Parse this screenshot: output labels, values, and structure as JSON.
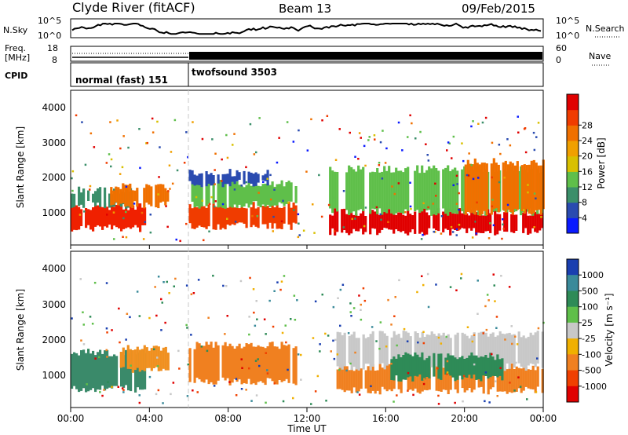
{
  "header": {
    "station": "Clyde River (fitACF)",
    "beam": "Beam 13",
    "date": "09/Feb/2015"
  },
  "noise_panel": {
    "left_label": "N.Sky",
    "right_label": "N.Search",
    "left_ticks": [
      "10^5",
      "10^0"
    ],
    "right_ticks": [
      "10^5",
      "10^0"
    ]
  },
  "freq_panel": {
    "left_label_1": "Freq.",
    "left_label_2": "[MHz]",
    "left_ticks": [
      "18",
      "8"
    ],
    "right_label": "Nave",
    "right_ticks": [
      "60",
      "0"
    ]
  },
  "cpid_panel": {
    "label": "CPID",
    "mode_1": "normal (fast) 151",
    "mode_2": "twofsound 3503"
  },
  "time_axis": {
    "label": "Time UT",
    "ticks": [
      "00:00",
      "04:00",
      "08:00",
      "12:00",
      "16:00",
      "20:00",
      "00:00"
    ]
  },
  "chart_data": [
    {
      "type": "heatmap",
      "name": "power",
      "ylabel": "Slant Range [km]",
      "y_ticks": [
        "1000",
        "2000",
        "3000",
        "4000"
      ],
      "ylim": [
        180,
        4500
      ],
      "xlim": [
        0,
        24
      ],
      "colorbar_label": "Power [dB]",
      "colorbar_ticks": [
        "4",
        "8",
        "12",
        "16",
        "20",
        "24",
        "28"
      ],
      "colorbar_colors": [
        "#0a1aff",
        "#2a4bb0",
        "#3b8f6a",
        "#5fbf4a",
        "#d8c000",
        "#f0a000",
        "#f07000",
        "#f03c00",
        "#e00000"
      ],
      "bands": [
        {
          "t0": 0.0,
          "t1": 3.8,
          "r0": 650,
          "r1": 1250,
          "color": "#f02000"
        },
        {
          "t0": 0.0,
          "t1": 3.0,
          "r0": 1300,
          "r1": 1700,
          "color": "#3b8f6a"
        },
        {
          "t0": 2.0,
          "t1": 5.0,
          "r0": 1300,
          "r1": 1800,
          "color": "#f07000"
        },
        {
          "t0": 6.0,
          "t1": 11.5,
          "r0": 700,
          "r1": 1300,
          "color": "#f03c00"
        },
        {
          "t0": 6.0,
          "t1": 11.5,
          "r0": 1300,
          "r1": 1900,
          "color": "#5fbf4a"
        },
        {
          "t0": 6.0,
          "t1": 10.0,
          "r0": 1900,
          "r1": 2200,
          "color": "#2a4bb0"
        },
        {
          "t0": 13.0,
          "t1": 24.0,
          "r0": 550,
          "r1": 1100,
          "color": "#e00000"
        },
        {
          "t0": 13.0,
          "t1": 24.0,
          "r0": 1100,
          "r1": 2300,
          "color": "#5fbf4a"
        },
        {
          "t0": 20.0,
          "t1": 24.0,
          "r0": 1100,
          "r1": 2500,
          "color": "#f07000"
        }
      ]
    },
    {
      "type": "heatmap",
      "name": "velocity",
      "ylabel": "Slant Range [km]",
      "y_ticks": [
        "1000",
        "2000",
        "3000",
        "4000"
      ],
      "ylim": [
        180,
        4500
      ],
      "xlim": [
        0,
        24
      ],
      "colorbar_label": "Velocity [m s⁻¹]",
      "colorbar_ticks": [
        "1000",
        "500",
        "100",
        "25",
        "-25",
        "-100",
        "-500",
        "-1000"
      ],
      "colorbar_colors": [
        "#1a3fb0",
        "#3a8a9a",
        "#2e8b57",
        "#5fbf4a",
        "#c8c8c8",
        "#f0b000",
        "#f08020",
        "#f04000",
        "#e00000"
      ],
      "bands": [
        {
          "t0": 0.0,
          "t1": 3.8,
          "r0": 700,
          "r1": 1700,
          "color": "#3a8a6a"
        },
        {
          "t0": 2.5,
          "t1": 5.0,
          "r0": 1200,
          "r1": 1800,
          "color": "#f09020"
        },
        {
          "t0": 6.0,
          "t1": 11.5,
          "r0": 900,
          "r1": 1900,
          "color": "#f08020"
        },
        {
          "t0": 13.5,
          "t1": 24.0,
          "r0": 650,
          "r1": 1300,
          "color": "#f08020"
        },
        {
          "t0": 13.5,
          "t1": 24.0,
          "r0": 1300,
          "r1": 2200,
          "color": "#c8c8c8"
        },
        {
          "t0": 16.0,
          "t1": 22.0,
          "r0": 1000,
          "r1": 1600,
          "color": "#2e8b57"
        }
      ]
    }
  ]
}
